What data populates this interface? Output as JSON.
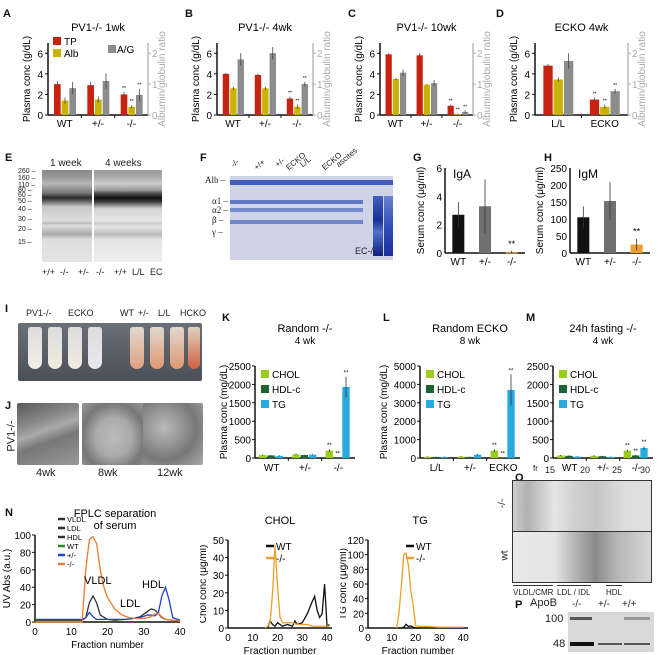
{
  "panels": {
    "A": {
      "letter": "A"
    },
    "B": {
      "letter": "B"
    },
    "C": {
      "letter": "C"
    },
    "D": {
      "letter": "D"
    },
    "E": {
      "letter": "E",
      "col_headers": [
        "1 week",
        "4 weeks"
      ],
      "ladder": [
        "260",
        "160",
        "110",
        "80",
        "60",
        "50",
        "40",
        "30",
        "20",
        "15"
      ],
      "lanes": [
        "+/+",
        "-/-",
        "+/-",
        "-/-",
        "+/+",
        "L/L",
        "EC"
      ]
    },
    "F": {
      "letter": "F",
      "lane_groups": [
        "-/-",
        "+/+",
        "+/-",
        "ECKO",
        "L/L",
        "ECKO",
        "ascites"
      ],
      "row_labels": [
        "Alb",
        "α1",
        "α2",
        "β",
        "γ"
      ],
      "annotation": "EC-/-"
    },
    "G": {
      "letter": "G"
    },
    "H": {
      "letter": "H"
    },
    "I": {
      "letter": "I",
      "tube_labels": [
        "PV1-/-",
        "ECKO",
        "WT",
        "+/-",
        "L/L",
        "HCKO"
      ]
    },
    "J": {
      "letter": "J",
      "row_label": "PV1-/-",
      "times": [
        "4wk",
        "8wk",
        "12wk"
      ],
      "scale_bar": "500nm"
    },
    "K": {
      "letter": "K"
    },
    "L": {
      "letter": "L"
    },
    "M": {
      "letter": "M"
    },
    "N": {
      "letter": "N"
    },
    "O": {
      "letter": "O",
      "fr_label": "fr",
      "fractions": [
        "15",
        "20",
        "25",
        "30"
      ],
      "rows": [
        "-/-",
        "wt"
      ],
      "regions": [
        "VLDL/CMR",
        "LDL / IDL",
        "HDL"
      ]
    },
    "P": {
      "letter": "P",
      "title": "ApoB",
      "lanes": [
        "-/-",
        "+/-",
        "+/+"
      ],
      "bands": [
        "100",
        "48"
      ]
    }
  },
  "colors": {
    "TP": "#c8230f",
    "Alb": "#c8b400",
    "AG": "#8c8c8c",
    "CHOL": "#9acd1e",
    "HDLc": "#1e6432",
    "TG": "#28aae1",
    "WT": "#111111",
    "het": "#707070",
    "ko": "#f0a028",
    "fplc_vldl": "#333333",
    "fplc_wt": "#2a8a2a",
    "fplc_het": "#2040d0",
    "fplc_ko": "#f07830"
  },
  "chart_data": [
    {
      "id": "A",
      "type": "bar",
      "title": "PV1-/- 1wk",
      "categories": [
        "WT",
        "+/-",
        "-/-"
      ],
      "ylabel": "Plasma conc (g/dL)",
      "ylim": [
        0,
        7
      ],
      "yticks": [
        0,
        2,
        4,
        6
      ],
      "y2label": "Albumin/globulin ratio",
      "y2lim": [
        0,
        2.33
      ],
      "y2ticks": [
        0,
        1,
        2
      ],
      "legend": [
        "TP",
        "Alb",
        "A/G"
      ],
      "series": [
        {
          "name": "TP",
          "axis": "left",
          "values": [
            3.0,
            2.9,
            2.0
          ],
          "err": [
            0.3,
            0.35,
            0.25
          ]
        },
        {
          "name": "Alb",
          "axis": "left",
          "values": [
            1.4,
            1.5,
            0.8
          ],
          "err": [
            0.3,
            0.3,
            0.15
          ]
        },
        {
          "name": "A/G",
          "axis": "right",
          "values": [
            0.87,
            1.1,
            0.65
          ],
          "err": [
            0.2,
            0.25,
            0.2
          ]
        }
      ],
      "sig": [
        "",
        "",
        "**"
      ]
    },
    {
      "id": "B",
      "type": "bar",
      "title": "PV1-/- 4wk",
      "categories": [
        "WT",
        "+/-",
        "-/-"
      ],
      "ylabel": "Plasma conc (g/dL)",
      "ylim": [
        0,
        7
      ],
      "yticks": [
        0,
        2,
        4,
        6
      ],
      "y2label": "Albumin/globulin ratio",
      "y2lim": [
        0,
        2.33
      ],
      "y2ticks": [
        0,
        1,
        2
      ],
      "series": [
        {
          "name": "TP",
          "axis": "left",
          "values": [
            4.0,
            3.9,
            1.6
          ],
          "err": [
            0.1,
            0.12,
            0.2
          ]
        },
        {
          "name": "Alb",
          "axis": "left",
          "values": [
            2.6,
            2.6,
            0.8
          ],
          "err": [
            0.15,
            0.15,
            0.2
          ]
        },
        {
          "name": "A/G",
          "axis": "right",
          "values": [
            1.8,
            2.0,
            1.0
          ],
          "err": [
            0.2,
            0.2,
            0.07
          ]
        }
      ],
      "sig": [
        "",
        "",
        "**"
      ]
    },
    {
      "id": "C",
      "type": "bar",
      "title": "PV1-/- 10wk",
      "categories": [
        "WT",
        "+/-",
        "-/-"
      ],
      "ylabel": "Plasma conc (g/dL)",
      "ylim": [
        0,
        7
      ],
      "yticks": [
        0,
        2,
        4,
        6
      ],
      "y2label": "Albumin/globulin ratio",
      "y2lim": [
        0,
        2.33
      ],
      "y2ticks": [
        0,
        1,
        2
      ],
      "series": [
        {
          "name": "TP",
          "axis": "left",
          "values": [
            5.9,
            5.8,
            0.9
          ],
          "err": [
            0.1,
            0.2,
            0.1
          ]
        },
        {
          "name": "Alb",
          "axis": "left",
          "values": [
            3.5,
            2.95,
            0.1
          ],
          "err": [
            0.1,
            0.05,
            0.05
          ]
        },
        {
          "name": "A/G",
          "axis": "right",
          "values": [
            1.37,
            1.03,
            0.1
          ],
          "err": [
            0.1,
            0.1,
            0.05
          ]
        }
      ],
      "sig": [
        "",
        "",
        "**"
      ]
    },
    {
      "id": "D",
      "type": "bar",
      "title": "ECKO  4wk",
      "categories": [
        "L/L",
        "ECKO"
      ],
      "ylabel": "Plasma conc (g/dL)",
      "ylim": [
        0,
        7
      ],
      "yticks": [
        0,
        2,
        4,
        6
      ],
      "y2label": "Albumin/globulin ratio",
      "y2lim": [
        0,
        2.33
      ],
      "y2ticks": [
        0,
        1,
        2
      ],
      "series": [
        {
          "name": "TP",
          "axis": "left",
          "values": [
            4.8,
            1.5
          ],
          "err": [
            0.15,
            0.2
          ]
        },
        {
          "name": "Alb",
          "axis": "left",
          "values": [
            3.45,
            0.8
          ],
          "err": [
            0.2,
            0.2
          ]
        },
        {
          "name": "A/G",
          "axis": "right",
          "values": [
            1.75,
            0.77
          ],
          "err": [
            0.25,
            0.07
          ]
        }
      ],
      "sig": [
        "",
        "**"
      ]
    },
    {
      "id": "G",
      "type": "bar",
      "title": "IgA",
      "categories": [
        "WT",
        "+/-",
        "-/-"
      ],
      "ylabel": "Serum conc (μg/ml)",
      "ylim": [
        0,
        6
      ],
      "yticks": [
        0,
        2,
        4,
        6
      ],
      "values": [
        2.7,
        3.3,
        0.05
      ],
      "err": [
        0.9,
        1.9,
        0.1
      ],
      "bar_colors": [
        "WT",
        "het",
        "ko"
      ],
      "sig": [
        "",
        "",
        "**"
      ]
    },
    {
      "id": "H",
      "type": "bar",
      "title": "IgM",
      "categories": [
        "WT",
        "+/-",
        "-/-"
      ],
      "ylabel": "Serum conc (μg/ml)",
      "ylim": [
        0,
        250
      ],
      "yticks": [
        0,
        50,
        100,
        150,
        200,
        250
      ],
      "values": [
        105,
        153,
        25
      ],
      "err": [
        32,
        55,
        17
      ],
      "bar_colors": [
        "WT",
        "het",
        "ko"
      ],
      "sig": [
        "",
        "",
        "**"
      ]
    },
    {
      "id": "K",
      "type": "bar",
      "title": "Random -/-",
      "subtitle": "4 wk",
      "categories": [
        "WT",
        "+/-",
        "-/-"
      ],
      "ylabel": "Plasma conc (mg/dL)",
      "ylim": [
        0,
        2500
      ],
      "yticks": [
        0,
        500,
        1000,
        1500,
        2000,
        2500
      ],
      "legend": [
        "CHOL",
        "HDL-c",
        "TG"
      ],
      "series": [
        {
          "name": "CHOL",
          "values": [
            80,
            100,
            200
          ],
          "err": [
            15,
            20,
            40
          ]
        },
        {
          "name": "HDL-c",
          "values": [
            70,
            80,
            15
          ],
          "err": [
            10,
            10,
            5
          ]
        },
        {
          "name": "TG",
          "values": [
            60,
            90,
            1930
          ],
          "err": [
            15,
            15,
            280
          ]
        }
      ],
      "sig": [
        [
          "",
          "",
          ""
        ],
        [
          "",
          "",
          ""
        ],
        [
          "**",
          "**",
          "**"
        ]
      ]
    },
    {
      "id": "L",
      "type": "bar",
      "title": "Random ECKO",
      "subtitle": "8 wk",
      "categories": [
        "L/L",
        "+/-",
        "ECKO"
      ],
      "ylabel": "Plasma conc (mg/dL)",
      "ylim": [
        0,
        5000
      ],
      "yticks": [
        0,
        1000,
        2000,
        3000,
        4000,
        5000
      ],
      "legend": [
        "CHOL",
        "HDL-c",
        "TG"
      ],
      "series": [
        {
          "name": "CHOL",
          "values": [
            70,
            80,
            400
          ],
          "err": [
            15,
            20,
            80
          ]
        },
        {
          "name": "HDL-c",
          "values": [
            60,
            60,
            30
          ],
          "err": [
            10,
            10,
            5
          ]
        },
        {
          "name": "TG",
          "values": [
            60,
            180,
            3700
          ],
          "err": [
            20,
            40,
            850
          ]
        }
      ],
      "sig": [
        [
          "",
          "",
          ""
        ],
        [
          "",
          "",
          ""
        ],
        [
          "**",
          "**",
          "**"
        ]
      ]
    },
    {
      "id": "M",
      "type": "bar",
      "title": "24h fasting -/-",
      "subtitle": "4 wk",
      "categories": [
        "WT",
        "+/-",
        "-/-"
      ],
      "ylabel": "",
      "ylim": [
        0,
        2500
      ],
      "yticks": [
        0,
        500,
        1000,
        1500,
        2000,
        2500
      ],
      "legend": [
        "CHOL",
        "HDL-c",
        "TG"
      ],
      "series": [
        {
          "name": "CHOL",
          "values": [
            70,
            60,
            200
          ],
          "err": [
            15,
            15,
            30
          ]
        },
        {
          "name": "HDL-c",
          "values": [
            60,
            50,
            70
          ],
          "err": [
            10,
            10,
            15
          ]
        },
        {
          "name": "TG",
          "values": [
            40,
            30,
            270
          ],
          "err": [
            10,
            10,
            50
          ]
        }
      ],
      "sig": [
        [
          "",
          "",
          ""
        ],
        [
          "",
          "",
          ""
        ],
        [
          "**",
          "**",
          "**"
        ]
      ]
    },
    {
      "id": "N",
      "type": "line",
      "title": "FPLC separation",
      "subtitle": "of serum",
      "xlabel": "Fraction number",
      "ylabel": "UV Abs (a.u.)",
      "xlim": [
        0,
        40
      ],
      "ylim": [
        0,
        100
      ],
      "xticks": [
        0,
        10,
        20,
        30,
        40
      ],
      "yticks": [
        0,
        20,
        40,
        60,
        80,
        100
      ],
      "legend": [
        "VLDL",
        "LDL",
        "HDL",
        "WT",
        "+/-",
        "-/-"
      ],
      "annotations": [
        "VLDL",
        "LDL",
        "HDL"
      ],
      "series": [
        {
          "name": "WT",
          "color": "fplc_vldl",
          "x": [
            0,
            5,
            10,
            13,
            14,
            15,
            16,
            17,
            18,
            20,
            22,
            25,
            27,
            29,
            31,
            32,
            33,
            34,
            35,
            36,
            38,
            40
          ],
          "y": [
            2,
            2,
            2,
            2,
            5,
            22,
            30,
            22,
            8,
            3,
            2,
            3,
            4,
            6,
            12,
            15,
            14,
            10,
            5,
            3,
            2,
            1
          ]
        },
        {
          "name": "+/-",
          "color": "fplc_het",
          "x": [
            0,
            5,
            10,
            13,
            14,
            15,
            16,
            17,
            18,
            20,
            22,
            25,
            27,
            29,
            31,
            32,
            33,
            34,
            35,
            36,
            37,
            38,
            40
          ],
          "y": [
            3,
            3,
            3,
            3,
            5,
            11,
            6,
            3,
            3,
            3,
            3,
            3,
            4,
            5,
            8,
            8,
            7,
            10,
            30,
            40,
            25,
            5,
            2
          ]
        },
        {
          "name": "-/-",
          "color": "fplc_ko",
          "x": [
            0,
            5,
            10,
            13,
            14,
            15,
            16,
            17,
            18,
            19,
            20,
            22,
            24,
            26,
            28,
            30,
            32,
            33,
            34,
            35,
            36,
            38,
            40
          ],
          "y": [
            0,
            0,
            0,
            0,
            60,
            95,
            98,
            90,
            60,
            40,
            28,
            15,
            8,
            5,
            4,
            4,
            6,
            9,
            10,
            6,
            3,
            2,
            1
          ]
        }
      ]
    },
    {
      "id": "N2",
      "type": "line",
      "title": "CHOL",
      "xlabel": "Fraction number",
      "ylabel": "Chol conc (μg/ml)",
      "xlim": [
        0,
        42
      ],
      "ylim": [
        0,
        50
      ],
      "xticks": [
        0,
        10,
        20,
        30,
        40
      ],
      "yticks": [
        0,
        10,
        20,
        30,
        40,
        50
      ],
      "legend": [
        "WT",
        "-/-"
      ],
      "series": [
        {
          "name": "WT",
          "color": "WT",
          "x": [
            16,
            17,
            18,
            19,
            20,
            21,
            22,
            24,
            26,
            27,
            28,
            30,
            32,
            34,
            35,
            36,
            37,
            38,
            39,
            40,
            41
          ],
          "y": [
            0,
            4,
            2,
            1,
            3,
            2,
            1,
            2,
            1,
            4,
            2,
            3,
            8,
            15,
            18,
            10,
            6,
            8,
            25,
            1,
            2
          ]
        },
        {
          "name": "-/-",
          "color": "ko",
          "x": [
            15,
            16,
            17,
            18,
            19,
            20,
            21,
            22,
            24,
            26,
            28,
            30,
            32,
            34,
            36,
            38,
            40,
            41
          ],
          "y": [
            0,
            1,
            3,
            20,
            47,
            24,
            6,
            3,
            3,
            3,
            2,
            2,
            2,
            1,
            1,
            1,
            1,
            1
          ]
        }
      ]
    },
    {
      "id": "N3",
      "type": "line",
      "title": "TG",
      "xlabel": "Fraction number",
      "ylabel": "TG conc (μg/ml)",
      "xlim": [
        0,
        42
      ],
      "ylim": [
        0,
        120
      ],
      "xticks": [
        0,
        10,
        20,
        30,
        40
      ],
      "yticks": [
        0,
        20,
        40,
        60,
        80,
        100,
        120
      ],
      "legend": [
        "WT",
        "-/-"
      ],
      "series": [
        {
          "name": "WT",
          "color": "WT",
          "x": [
            12,
            14,
            15,
            16,
            17,
            18,
            19,
            20,
            22,
            30,
            40
          ],
          "y": [
            0,
            0,
            1,
            5,
            2,
            3,
            1,
            0,
            0,
            0,
            0
          ]
        },
        {
          "name": "-/-",
          "color": "ko",
          "x": [
            12,
            13,
            14,
            15,
            16,
            17,
            18,
            19,
            20,
            22,
            25,
            30,
            35,
            40
          ],
          "y": [
            0,
            20,
            57,
            100,
            102,
            85,
            50,
            30,
            3,
            2,
            2,
            1,
            1,
            1
          ]
        }
      ]
    }
  ]
}
